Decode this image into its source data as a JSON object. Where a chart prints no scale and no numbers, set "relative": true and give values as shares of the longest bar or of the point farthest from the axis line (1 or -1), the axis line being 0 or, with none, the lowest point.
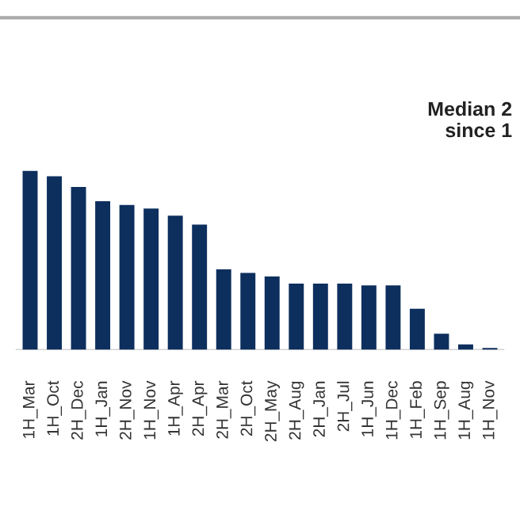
{
  "chart_data": {
    "type": "bar",
    "title": "Median 2\nsince 1",
    "relative": true,
    "color": "#0d2f5e",
    "categories": [
      "1H_Mar",
      "1H_Oct",
      "2H_Dec",
      "1H_Jan",
      "2H_Nov",
      "1H_Nov",
      "1H_Apr",
      "2H_Apr",
      "2H_Mar",
      "2H_Oct",
      "2H_May",
      "2H_Aug",
      "2H_Jan",
      "2H_Jul",
      "1H_Jun",
      "1H_Dec",
      "1H_Feb",
      "1H_Sep",
      "1H_Aug",
      "1H_Nov"
    ],
    "values": [
      1,
      0.97,
      0.91,
      0.83,
      0.81,
      0.79,
      0.75,
      0.7,
      0.45,
      0.43,
      0.41,
      0.37,
      0.37,
      0.37,
      0.36,
      0.36,
      0.23,
      0.09,
      0.03,
      0.01
    ],
    "grid": false,
    "legend": false
  }
}
